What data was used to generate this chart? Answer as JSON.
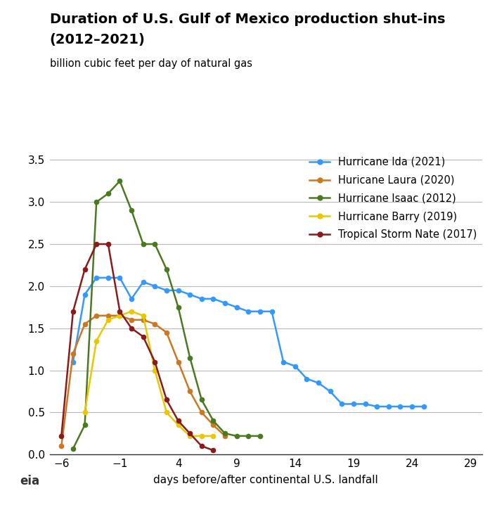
{
  "title_line1": "Duration of U.S. Gulf of Mexico production shut-ins",
  "title_line2": "(2012–2021)",
  "ylabel": "billion cubic feet per day of natural gas",
  "xlabel": "days before/after continental U.S. landfall",
  "xlim": [
    -7,
    30
  ],
  "ylim": [
    0.0,
    3.6
  ],
  "xticks": [
    -6,
    -1,
    4,
    9,
    14,
    19,
    24,
    29
  ],
  "yticks": [
    0.0,
    0.5,
    1.0,
    1.5,
    2.0,
    2.5,
    3.0,
    3.5
  ],
  "series": [
    {
      "label": "Hurricane Ida (2021)",
      "color": "#3399ff",
      "x": [
        -5,
        -4,
        -3,
        -2,
        -1,
        0,
        1,
        2,
        3,
        4,
        5,
        6,
        7,
        8,
        9,
        10,
        11,
        12,
        13,
        14,
        15,
        16,
        17,
        18,
        19,
        20,
        21,
        22,
        23,
        24,
        25
      ],
      "y": [
        1.1,
        1.9,
        2.1,
        2.1,
        2.1,
        1.85,
        2.05,
        2.0,
        1.95,
        1.95,
        1.9,
        1.85,
        1.85,
        1.8,
        1.75,
        1.7,
        1.7,
        1.7,
        1.1,
        1.05,
        0.9,
        0.85,
        0.75,
        0.6,
        0.6,
        0.6,
        0.57,
        0.57,
        0.57,
        0.57,
        0.57
      ]
    },
    {
      "label": "Huricane Laura (2020)",
      "color": "#cc7722",
      "x": [
        -6,
        -5,
        -4,
        -3,
        -2,
        -1,
        0,
        1,
        2,
        3,
        4,
        5,
        6,
        7,
        8
      ],
      "y": [
        0.1,
        1.2,
        1.55,
        1.65,
        1.65,
        1.65,
        1.6,
        1.6,
        1.55,
        1.45,
        1.1,
        0.75,
        0.5,
        0.35,
        0.22
      ]
    },
    {
      "label": "Hurricane Isaac (2012)",
      "color": "#4a7a20",
      "x": [
        -5,
        -4,
        -3,
        -2,
        -1,
        0,
        1,
        2,
        3,
        4,
        5,
        6,
        7,
        8,
        9,
        10,
        11
      ],
      "y": [
        0.07,
        0.35,
        3.0,
        3.1,
        3.25,
        2.9,
        2.5,
        2.5,
        2.2,
        1.75,
        1.15,
        0.65,
        0.4,
        0.25,
        0.22,
        0.22,
        0.22
      ]
    },
    {
      "label": "Hurricane Barry (2019)",
      "color": "#e8c800",
      "x": [
        -4,
        -3,
        -2,
        -1,
        0,
        1,
        2,
        3,
        4,
        5,
        6,
        7
      ],
      "y": [
        0.5,
        1.35,
        1.6,
        1.65,
        1.7,
        1.65,
        1.0,
        0.5,
        0.35,
        0.22,
        0.22,
        0.22
      ]
    },
    {
      "label": "Tropical Storm Nate (2017)",
      "color": "#8b1a1a",
      "x": [
        -6,
        -5,
        -4,
        -3,
        -2,
        -1,
        0,
        1,
        2,
        3,
        4,
        5,
        6,
        7
      ],
      "y": [
        0.22,
        1.7,
        2.2,
        2.5,
        2.5,
        1.7,
        1.5,
        1.4,
        1.1,
        0.65,
        0.4,
        0.25,
        0.1,
        0.05
      ]
    }
  ]
}
